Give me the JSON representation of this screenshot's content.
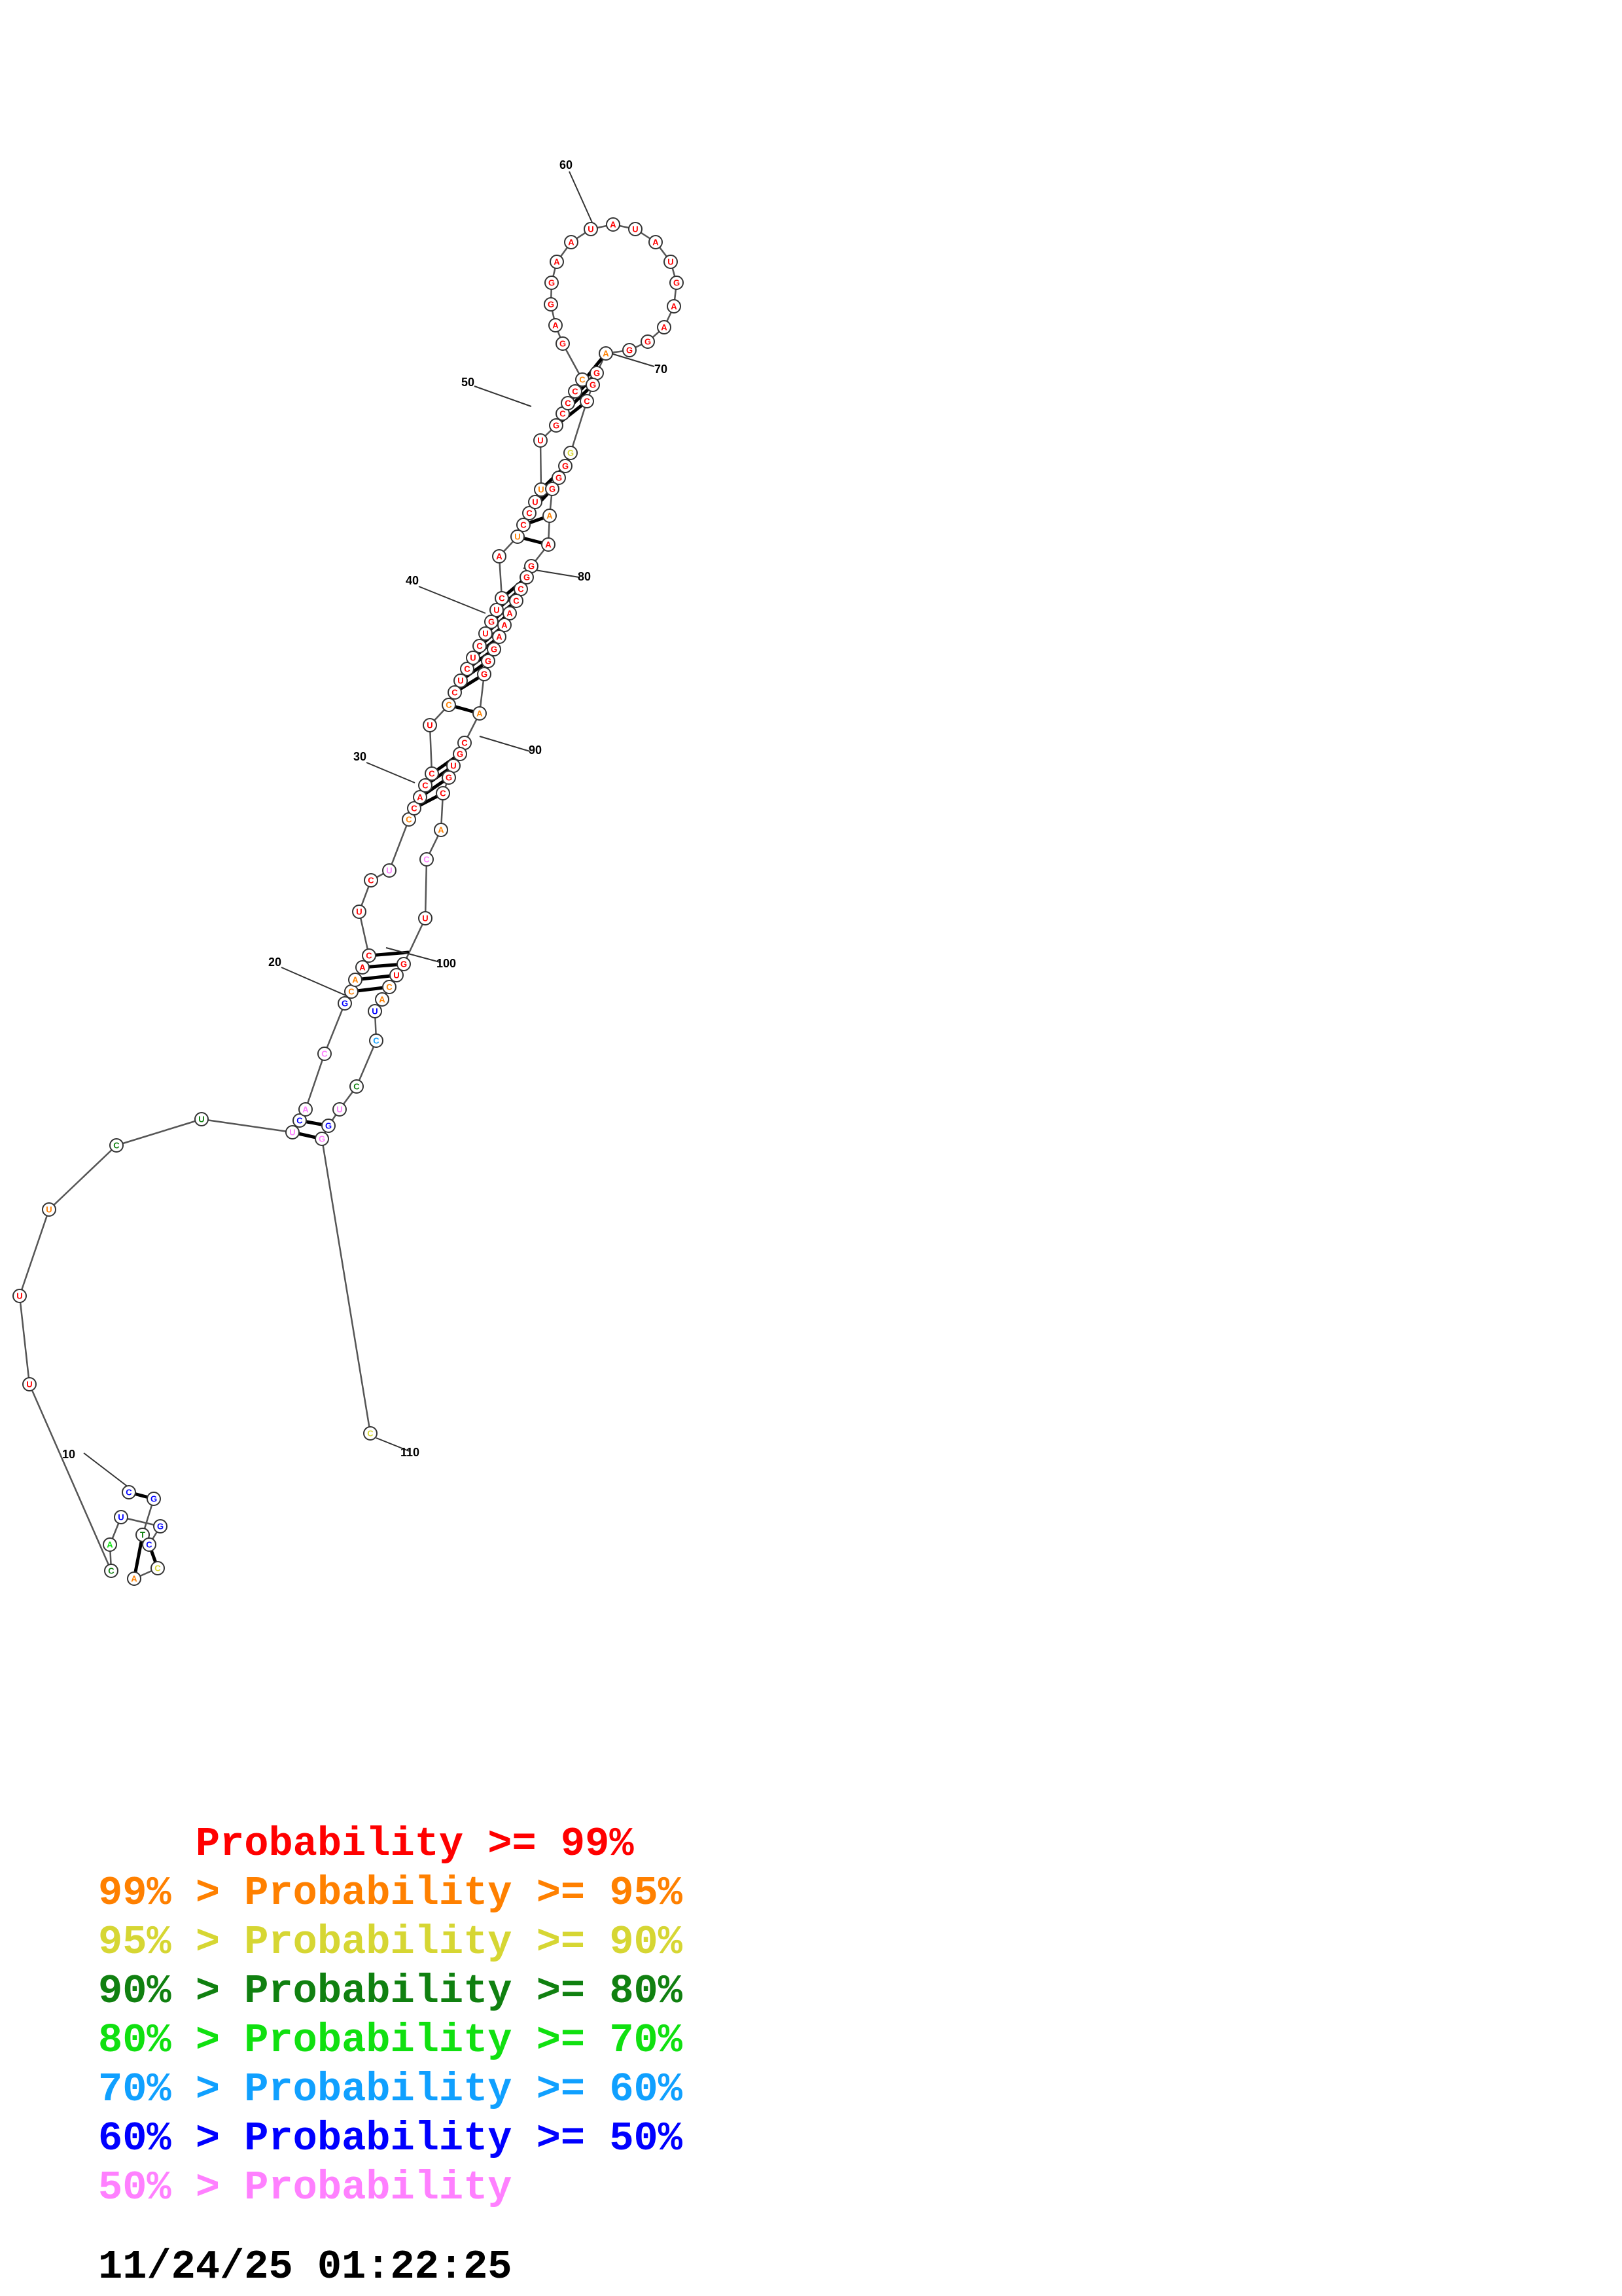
{
  "structure": {
    "colors": {
      "p99": "#ff0000",
      "p95": "#ff8000",
      "p90": "#d6d633",
      "p80": "#108010",
      "p70": "#10e010",
      "p60": "#10a0ff",
      "p50": "#0000ff",
      "plow": "#ff80ff"
    },
    "position_labels": [
      "10",
      "20",
      "30",
      "40",
      "50",
      "60",
      "70",
      "80",
      "90",
      "100",
      "110"
    ]
  },
  "legend": {
    "rows": [
      {
        "prefix": "    ",
        "text": "Probability >= 99%",
        "color": "#ff0000"
      },
      {
        "prefix": "99% > ",
        "text": "Probability >= 95%",
        "color": "#ff8000"
      },
      {
        "prefix": "95% > ",
        "text": "Probability >= 90%",
        "color": "#d6d633"
      },
      {
        "prefix": "90% > ",
        "text": "Probability >= 80%",
        "color": "#108010"
      },
      {
        "prefix": "80% > ",
        "text": "Probability >= 70%",
        "color": "#10e010"
      },
      {
        "prefix": "70% > ",
        "text": "Probability >= 60%",
        "color": "#10a0ff"
      },
      {
        "prefix": "60% > ",
        "text": "Probability >= 50%",
        "color": "#0000ff"
      },
      {
        "prefix": "50% > ",
        "text": "Probability",
        "color": "#ff80ff"
      }
    ],
    "timestamp": "11/24/25 01:22:25"
  }
}
